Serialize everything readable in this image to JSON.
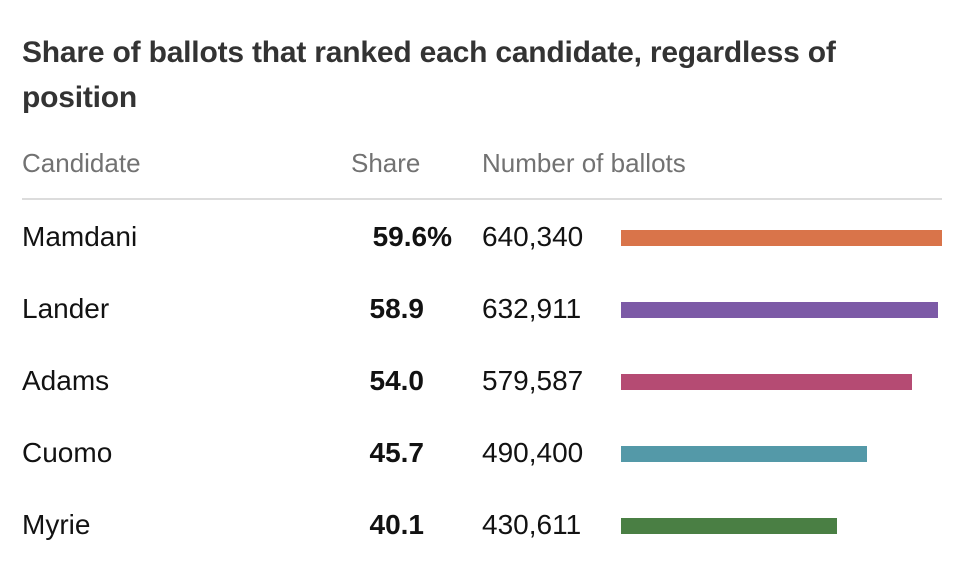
{
  "chart_data": {
    "type": "table",
    "title": "Share of ballots that ranked each candidate, regardless of position",
    "columns": [
      "Candidate",
      "Share",
      "Number of ballots"
    ],
    "rows": [
      {
        "candidate": "Mamdani",
        "share": "59.6%",
        "ballots": "640,340",
        "value": 640340,
        "color": "#d9744a"
      },
      {
        "candidate": "Lander",
        "share": "58.9",
        "ballots": "632,911",
        "value": 632911,
        "color": "#7c5aa6"
      },
      {
        "candidate": "Adams",
        "share": "54.0",
        "ballots": "579,587",
        "value": 579587,
        "color": "#b54b73"
      },
      {
        "candidate": "Cuomo",
        "share": "45.7",
        "ballots": "490,400",
        "value": 490400,
        "color": "#5499a8"
      },
      {
        "candidate": "Myrie",
        "share": "40.1",
        "ballots": "430,611",
        "value": 430611,
        "color": "#4a7f44"
      }
    ],
    "xlim": [
      0,
      640340
    ],
    "grid": false
  }
}
